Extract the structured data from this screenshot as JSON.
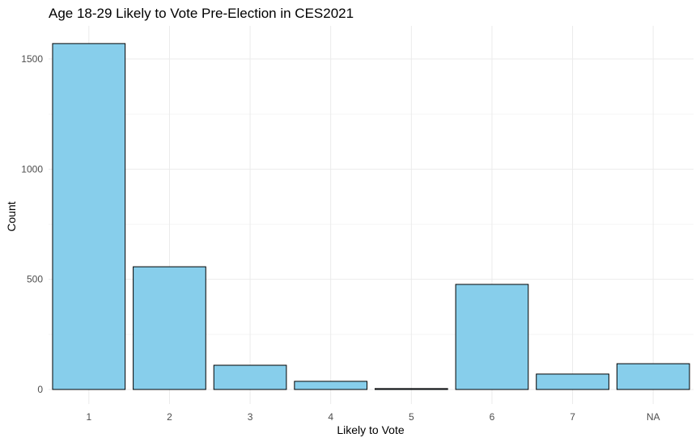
{
  "chart_data": {
    "type": "bar",
    "title": "Age 18-29 Likely to Vote Pre-Election in CES2021",
    "xlabel": "Likely to Vote",
    "ylabel": "Count",
    "categories": [
      "1",
      "2",
      "3",
      "4",
      "5",
      "6",
      "7",
      "NA"
    ],
    "values": [
      1570,
      557,
      110,
      37,
      4,
      477,
      70,
      117
    ],
    "ylim": [
      0,
      1600
    ],
    "yticks": [
      0,
      500,
      1000,
      1500
    ],
    "ytick_labels": [
      "0",
      "500",
      "1000",
      "1500"
    ],
    "grid": true,
    "bar_color": "#87CEEB",
    "bar_edge_color": "#000000"
  }
}
